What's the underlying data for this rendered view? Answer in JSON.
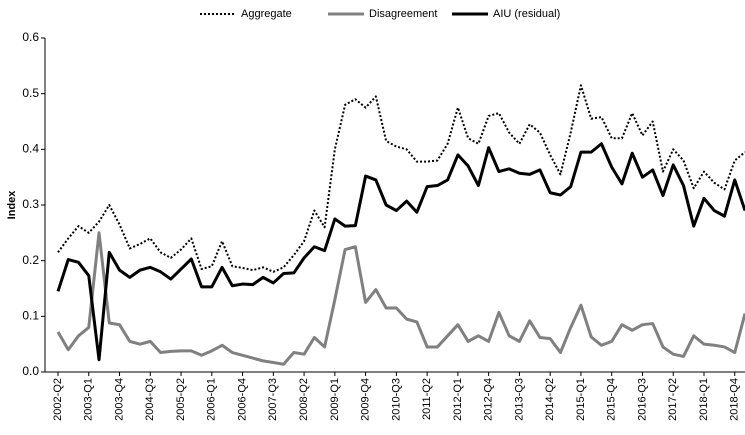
{
  "chart_data": {
    "type": "line",
    "y_label": "Index",
    "categories": [
      "2002-Q2",
      null,
      null,
      "2003-Q1",
      null,
      null,
      "2003-Q4",
      null,
      null,
      "2004-Q3",
      null,
      null,
      "2005-Q2",
      null,
      null,
      "2006-Q1",
      null,
      null,
      "2006-Q4",
      null,
      null,
      "2007-Q3",
      null,
      null,
      "2008-Q2",
      null,
      null,
      "2009-Q1",
      null,
      null,
      "2009-Q4",
      null,
      null,
      "2010-Q3",
      null,
      null,
      "2011-Q2",
      null,
      null,
      "2012-Q1",
      null,
      null,
      "2012-Q4",
      null,
      null,
      "2013-Q3",
      null,
      null,
      "2014-Q2",
      null,
      null,
      "2015-Q1",
      null,
      null,
      "2015-Q4",
      null,
      null,
      "2016-Q3",
      null,
      null,
      "2017-Q2",
      null,
      null,
      "2018-Q1",
      null,
      null,
      "2018-Q4",
      null
    ],
    "series": [
      {
        "name": "Aggregate",
        "color": "#000000",
        "line_style": "dotted",
        "line_width": 2,
        "values": [
          0.215,
          0.24,
          0.262,
          0.25,
          0.27,
          0.3,
          0.265,
          0.222,
          0.23,
          0.24,
          0.215,
          0.205,
          0.22,
          0.24,
          0.185,
          0.19,
          0.235,
          0.19,
          0.187,
          0.183,
          0.188,
          0.18,
          0.188,
          0.21,
          0.235,
          0.29,
          0.26,
          0.4,
          0.48,
          0.49,
          0.475,
          0.495,
          0.415,
          0.405,
          0.4,
          0.378,
          0.378,
          0.38,
          0.41,
          0.475,
          0.42,
          0.41,
          0.46,
          0.465,
          0.43,
          0.41,
          0.445,
          0.43,
          0.39,
          0.355,
          0.43,
          0.515,
          0.455,
          0.458,
          0.42,
          0.42,
          0.465,
          0.425,
          0.45,
          0.36,
          0.4,
          0.38,
          0.33,
          0.36,
          0.34,
          0.328,
          0.38,
          0.395
        ]
      },
      {
        "name": "Disagreement",
        "color": "#808080",
        "line_style": "solid",
        "line_width": 3,
        "values": [
          0.072,
          0.04,
          0.065,
          0.08,
          0.25,
          0.088,
          0.085,
          0.055,
          0.05,
          0.055,
          0.035,
          0.037,
          0.038,
          0.038,
          0.03,
          0.038,
          0.048,
          0.035,
          0.03,
          0.025,
          0.02,
          0.017,
          0.014,
          0.035,
          0.032,
          0.062,
          0.045,
          0.13,
          0.22,
          0.225,
          0.125,
          0.148,
          0.115,
          0.115,
          0.095,
          0.09,
          0.045,
          0.045,
          0.065,
          0.085,
          0.055,
          0.065,
          0.055,
          0.107,
          0.065,
          0.055,
          0.092,
          0.062,
          0.06,
          0.035,
          0.08,
          0.12,
          0.063,
          0.048,
          0.055,
          0.085,
          0.075,
          0.085,
          0.087,
          0.045,
          0.032,
          0.028,
          0.065,
          0.05,
          0.048,
          0.045,
          0.035,
          0.105
        ]
      },
      {
        "name": "AIU (residual)",
        "color": "#000000",
        "line_style": "solid",
        "line_width": 3,
        "values": [
          0.145,
          0.202,
          0.197,
          0.173,
          0.022,
          0.215,
          0.183,
          0.17,
          0.183,
          0.188,
          0.18,
          0.167,
          0.185,
          0.203,
          0.153,
          0.153,
          0.188,
          0.155,
          0.158,
          0.157,
          0.17,
          0.16,
          0.177,
          0.178,
          0.205,
          0.225,
          0.218,
          0.275,
          0.262,
          0.263,
          0.352,
          0.345,
          0.3,
          0.29,
          0.307,
          0.287,
          0.333,
          0.335,
          0.345,
          0.39,
          0.37,
          0.335,
          0.403,
          0.36,
          0.365,
          0.357,
          0.355,
          0.363,
          0.322,
          0.318,
          0.333,
          0.395,
          0.395,
          0.41,
          0.368,
          0.338,
          0.393,
          0.35,
          0.363,
          0.317,
          0.372,
          0.335,
          0.262,
          0.312,
          0.29,
          0.28,
          0.345,
          0.29
        ]
      }
    ],
    "ylim": [
      0,
      0.6
    ],
    "yticks": [
      {
        "value": 0,
        "label": "0.0"
      },
      0.1,
      0.2,
      0.3,
      0.4,
      0.5,
      0.6
    ],
    "grid": false,
    "legend": "top"
  }
}
